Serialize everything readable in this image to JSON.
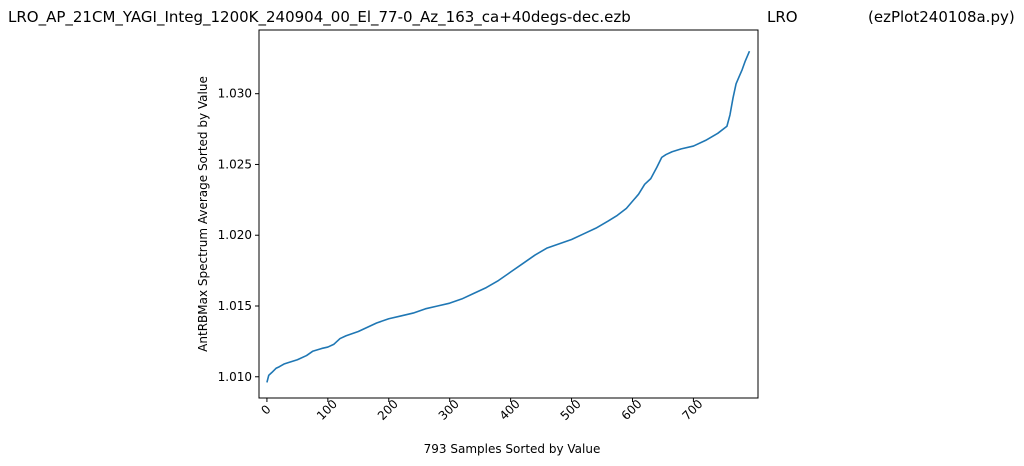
{
  "title": {
    "left": "LRO_AP_21CM_YAGI_Integ_1200K_240904_00_El_77-0_Az_163_ca+40degs-dec.ezb",
    "middle": "LRO",
    "right": "(ezPlot240108a.py)"
  },
  "chart_data": {
    "type": "line",
    "xlabel": "793 Samples Sorted by Value",
    "ylabel": "AntRBMax Spectrum Average Sorted by Value",
    "xlim": [
      -13,
      806
    ],
    "ylim": [
      1.0085,
      1.0345
    ],
    "xticks": [
      "0",
      "100",
      "200",
      "300",
      "400",
      "500",
      "600",
      "700"
    ],
    "yticks": [
      "1.010",
      "1.015",
      "1.020",
      "1.025",
      "1.030"
    ],
    "grid": false,
    "line_color": "#1f77b4",
    "series": [
      {
        "x": [
          0,
          3,
          8,
          15,
          20,
          28,
          35,
          50,
          65,
          75,
          90,
          100,
          110,
          120,
          130,
          150,
          165,
          180,
          200,
          220,
          240,
          260,
          280,
          300,
          320,
          340,
          360,
          380,
          400,
          420,
          440,
          460,
          480,
          500,
          520,
          540,
          560,
          575,
          590,
          600,
          610,
          620,
          630,
          640,
          648,
          655,
          665,
          680,
          700,
          720,
          740,
          755,
          760,
          765,
          770,
          775,
          780,
          785,
          792
        ],
        "y": [
          1.0096,
          1.0101,
          1.0103,
          1.0106,
          1.0107,
          1.0109,
          1.011,
          1.0112,
          1.0115,
          1.0118,
          1.012,
          1.0121,
          1.0123,
          1.0127,
          1.0129,
          1.0132,
          1.0135,
          1.0138,
          1.0141,
          1.0143,
          1.0145,
          1.0148,
          1.015,
          1.0152,
          1.0155,
          1.0159,
          1.0163,
          1.0168,
          1.0174,
          1.018,
          1.0186,
          1.0191,
          1.0194,
          1.0197,
          1.0201,
          1.0205,
          1.021,
          1.0214,
          1.0219,
          1.0224,
          1.0229,
          1.0236,
          1.024,
          1.0248,
          1.0255,
          1.0257,
          1.0259,
          1.0261,
          1.0263,
          1.0267,
          1.0272,
          1.0277,
          1.0285,
          1.0297,
          1.0307,
          1.0312,
          1.0317,
          1.0323,
          1.033
        ]
      }
    ]
  }
}
